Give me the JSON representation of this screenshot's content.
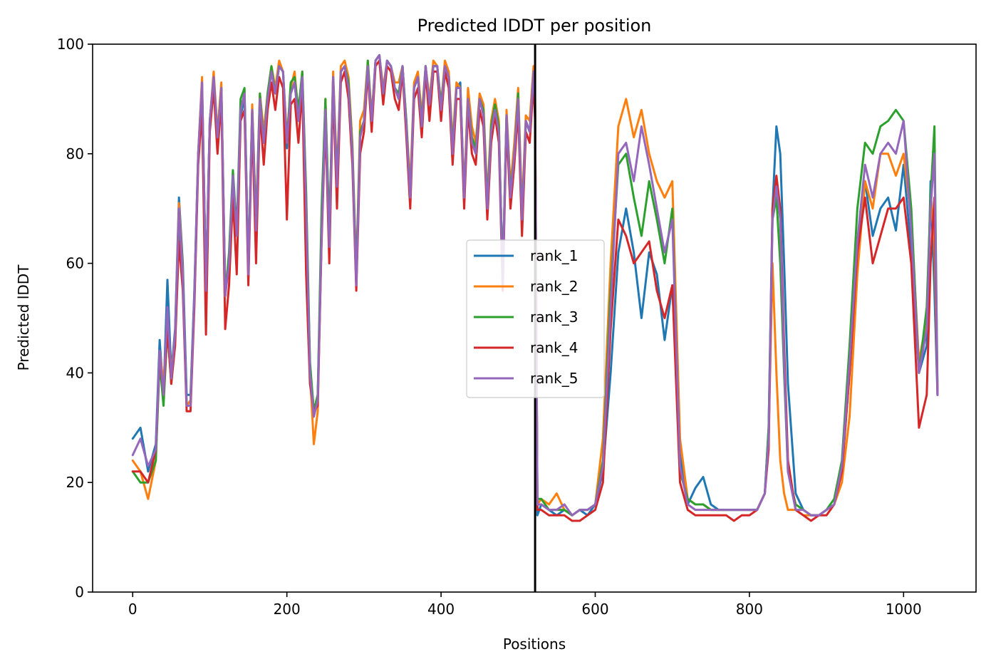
{
  "chart_data": {
    "type": "line",
    "title": "Predicted lDDT per position",
    "xlabel": "Positions",
    "ylabel": "Predicted lDDT",
    "xlim": [
      -52,
      1094
    ],
    "ylim": [
      0,
      100
    ],
    "xticks": [
      0,
      200,
      400,
      600,
      800,
      1000
    ],
    "yticks": [
      0,
      20,
      40,
      60,
      80,
      100
    ],
    "grid": false,
    "legend_position": "center",
    "vertical_lines": [
      {
        "x": 522,
        "color": "#000000"
      }
    ],
    "colors": {
      "rank_1": "#1f77b4",
      "rank_2": "#ff7f0e",
      "rank_3": "#2ca02c",
      "rank_4": "#d62728",
      "rank_5": "#9467bd"
    },
    "legend": [
      "rank_1",
      "rank_2",
      "rank_3",
      "rank_4",
      "rank_5"
    ],
    "x": [
      0,
      10,
      20,
      30,
      35,
      40,
      45,
      50,
      55,
      60,
      65,
      70,
      75,
      80,
      85,
      90,
      95,
      100,
      105,
      110,
      115,
      120,
      125,
      130,
      135,
      140,
      145,
      150,
      155,
      160,
      165,
      170,
      175,
      180,
      185,
      190,
      195,
      200,
      205,
      210,
      215,
      220,
      225,
      230,
      235,
      240,
      245,
      250,
      255,
      260,
      265,
      270,
      275,
      280,
      285,
      290,
      295,
      300,
      305,
      310,
      315,
      320,
      325,
      330,
      335,
      340,
      345,
      350,
      355,
      360,
      365,
      370,
      375,
      380,
      385,
      390,
      395,
      400,
      405,
      410,
      415,
      420,
      425,
      430,
      435,
      440,
      445,
      450,
      455,
      460,
      465,
      470,
      475,
      480,
      485,
      490,
      495,
      500,
      505,
      510,
      515,
      520,
      522,
      525,
      530,
      540,
      550,
      560,
      570,
      580,
      590,
      600,
      610,
      620,
      630,
      640,
      650,
      660,
      670,
      680,
      690,
      700,
      710,
      720,
      730,
      740,
      750,
      760,
      770,
      780,
      790,
      800,
      810,
      820,
      825,
      830,
      835,
      840,
      845,
      850,
      860,
      870,
      880,
      890,
      900,
      910,
      920,
      930,
      940,
      950,
      960,
      970,
      980,
      990,
      1000,
      1010,
      1020,
      1030,
      1035,
      1040,
      1044
    ],
    "series": [
      {
        "name": "rank_1",
        "values": [
          28,
          30,
          22,
          27,
          46,
          36,
          57,
          40,
          48,
          72,
          60,
          36,
          36,
          55,
          80,
          93,
          56,
          86,
          94,
          83,
          92,
          55,
          60,
          76,
          66,
          87,
          90,
          59,
          88,
          66,
          90,
          82,
          90,
          95,
          91,
          96,
          95,
          81,
          91,
          93,
          86,
          94,
          69,
          41,
          33,
          36,
          65,
          88,
          63,
          94,
          74,
          95,
          96,
          92,
          80,
          56,
          83,
          86,
          96,
          86,
          97,
          98,
          90,
          97,
          96,
          92,
          90,
          96,
          85,
          71,
          92,
          94,
          85,
          96,
          89,
          96,
          96,
          88,
          96,
          94,
          80,
          92,
          93,
          71,
          90,
          82,
          80,
          90,
          87,
          70,
          84,
          88,
          84,
          58,
          87,
          72,
          80,
          90,
          68,
          86,
          84,
          95,
          88,
          14,
          16,
          15,
          14,
          15,
          14,
          15,
          14,
          16,
          22,
          40,
          62,
          70,
          62,
          50,
          62,
          58,
          46,
          56,
          25,
          16,
          19,
          21,
          16,
          15,
          15,
          15,
          15,
          15,
          15,
          18,
          30,
          70,
          85,
          80,
          60,
          38,
          18,
          15,
          14,
          14,
          15,
          16,
          22,
          40,
          60,
          75,
          65,
          70,
          72,
          66,
          78,
          62,
          40,
          45,
          75,
          55,
          36
        ]
      },
      {
        "name": "rank_2",
        "values": [
          24,
          22,
          17,
          24,
          44,
          38,
          50,
          40,
          47,
          71,
          58,
          34,
          35,
          54,
          80,
          94,
          55,
          86,
          95,
          84,
          93,
          55,
          61,
          75,
          65,
          88,
          91,
          58,
          89,
          68,
          91,
          84,
          91,
          96,
          92,
          97,
          95,
          83,
          92,
          95,
          87,
          95,
          72,
          40,
          27,
          33,
          66,
          90,
          65,
          95,
          76,
          96,
          97,
          94,
          82,
          58,
          86,
          88,
          97,
          87,
          97,
          98,
          92,
          97,
          96,
          93,
          93,
          96,
          86,
          74,
          93,
          95,
          87,
          96,
          90,
          97,
          96,
          89,
          97,
          95,
          82,
          93,
          92,
          73,
          92,
          85,
          82,
          91,
          89,
          72,
          86,
          90,
          86,
          56,
          88,
          74,
          82,
          92,
          70,
          87,
          86,
          96,
          90,
          16,
          17,
          16,
          18,
          15,
          14,
          15,
          15,
          16,
          28,
          60,
          85,
          90,
          83,
          88,
          80,
          75,
          72,
          75,
          28,
          17,
          16,
          16,
          15,
          15,
          15,
          15,
          15,
          15,
          15,
          18,
          28,
          60,
          40,
          24,
          18,
          15,
          15,
          14,
          14,
          14,
          15,
          16,
          20,
          32,
          58,
          75,
          70,
          80,
          80,
          76,
          80,
          68,
          42,
          50,
          72,
          64,
          37
        ]
      },
      {
        "name": "rank_3",
        "values": [
          22,
          20,
          20,
          24,
          42,
          34,
          48,
          38,
          46,
          66,
          57,
          34,
          34,
          54,
          79,
          92,
          56,
          86,
          94,
          83,
          92,
          54,
          62,
          77,
          66,
          90,
          92,
          59,
          88,
          67,
          91,
          82,
          91,
          96,
          91,
          96,
          95,
          82,
          93,
          94,
          88,
          95,
          73,
          42,
          33,
          36,
          70,
          90,
          66,
          94,
          75,
          95,
          96,
          93,
          81,
          58,
          84,
          86,
          97,
          86,
          97,
          98,
          91,
          97,
          96,
          92,
          91,
          96,
          86,
          72,
          92,
          94,
          86,
          96,
          89,
          96,
          96,
          89,
          96,
          94,
          81,
          92,
          92,
          72,
          90,
          83,
          81,
          90,
          88,
          71,
          85,
          89,
          85,
          57,
          87,
          73,
          80,
          91,
          68,
          86,
          84,
          95,
          89,
          17,
          17,
          15,
          15,
          15,
          14,
          15,
          15,
          16,
          24,
          55,
          78,
          80,
          72,
          65,
          75,
          68,
          60,
          70,
          22,
          17,
          16,
          16,
          15,
          15,
          15,
          15,
          15,
          15,
          15,
          18,
          30,
          68,
          72,
          60,
          40,
          22,
          16,
          15,
          14,
          14,
          15,
          17,
          24,
          45,
          70,
          82,
          80,
          85,
          86,
          88,
          86,
          70,
          40,
          52,
          72,
          85,
          37
        ]
      },
      {
        "name": "rank_4",
        "values": [
          22,
          22,
          20,
          26,
          43,
          36,
          48,
          38,
          45,
          64,
          55,
          33,
          33,
          52,
          78,
          88,
          47,
          84,
          92,
          80,
          90,
          48,
          56,
          72,
          58,
          86,
          88,
          56,
          86,
          60,
          88,
          78,
          88,
          93,
          88,
          94,
          92,
          68,
          89,
          90,
          82,
          92,
          58,
          38,
          33,
          34,
          64,
          86,
          60,
          92,
          70,
          93,
          95,
          90,
          78,
          55,
          80,
          84,
          95,
          84,
          96,
          97,
          89,
          96,
          95,
          90,
          88,
          95,
          83,
          70,
          90,
          92,
          83,
          95,
          86,
          95,
          95,
          86,
          95,
          92,
          78,
          90,
          90,
          70,
          88,
          80,
          78,
          88,
          85,
          68,
          82,
          87,
          82,
          55,
          85,
          70,
          78,
          88,
          65,
          84,
          82,
          93,
          86,
          15,
          15,
          14,
          14,
          14,
          13,
          13,
          14,
          15,
          20,
          48,
          68,
          65,
          60,
          62,
          64,
          55,
          50,
          56,
          20,
          15,
          14,
          14,
          14,
          14,
          14,
          13,
          14,
          14,
          15,
          18,
          26,
          70,
          76,
          70,
          45,
          24,
          15,
          14,
          13,
          14,
          14,
          16,
          22,
          40,
          62,
          72,
          60,
          65,
          70,
          70,
          72,
          60,
          30,
          36,
          60,
          72,
          36
        ]
      },
      {
        "name": "rank_5",
        "values": [
          25,
          28,
          23,
          26,
          44,
          36,
          52,
          39,
          47,
          70,
          57,
          34,
          34,
          54,
          80,
          93,
          55,
          86,
          94,
          83,
          92,
          54,
          60,
          76,
          65,
          88,
          91,
          58,
          88,
          66,
          90,
          82,
          90,
          95,
          91,
          96,
          95,
          82,
          91,
          93,
          86,
          94,
          70,
          40,
          32,
          35,
          65,
          88,
          63,
          94,
          74,
          95,
          96,
          92,
          80,
          56,
          83,
          86,
          96,
          86,
          97,
          98,
          91,
          97,
          96,
          92,
          90,
          96,
          85,
          72,
          92,
          94,
          85,
          96,
          89,
          96,
          96,
          88,
          96,
          94,
          80,
          92,
          92,
          72,
          90,
          82,
          80,
          90,
          87,
          70,
          84,
          88,
          84,
          56,
          87,
          72,
          80,
          90,
          68,
          86,
          84,
          95,
          88,
          16,
          16,
          15,
          15,
          16,
          14,
          15,
          15,
          16,
          23,
          52,
          80,
          82,
          75,
          85,
          78,
          70,
          62,
          68,
          23,
          16,
          15,
          15,
          15,
          15,
          15,
          15,
          15,
          15,
          15,
          18,
          28,
          68,
          74,
          68,
          42,
          22,
          15,
          15,
          14,
          14,
          15,
          16,
          23,
          42,
          64,
          78,
          72,
          80,
          82,
          80,
          86,
          66,
          40,
          48,
          70,
          80,
          36
        ]
      }
    ]
  }
}
